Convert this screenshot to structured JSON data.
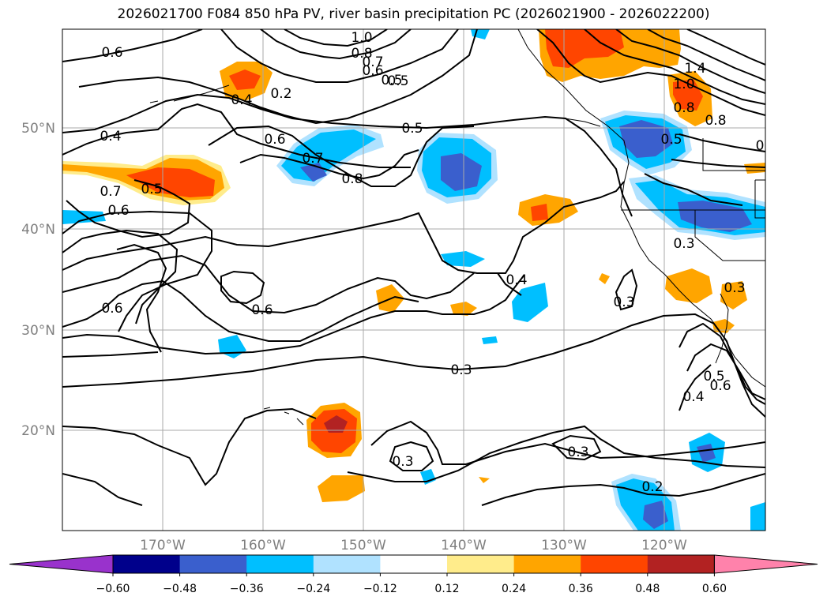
{
  "title": "2026021700 F084 850 hPa PV, river basin precipitation PC (2026021900 - 2026022200)",
  "axes": {
    "lat_labels": [
      "50°N",
      "40°N",
      "30°N",
      "20°N"
    ],
    "lon_labels": [
      "170°W",
      "160°W",
      "150°W",
      "140°W",
      "130°W",
      "120°W"
    ]
  },
  "colorbar": {
    "ticks": [
      "−0.60",
      "−0.48",
      "−0.36",
      "−0.24",
      "−0.12",
      "0.12",
      "0.24",
      "0.36",
      "0.48",
      "0.60"
    ],
    "colors": [
      "#9932cc",
      "#00008b",
      "#3a5fcd",
      "#00bfff",
      "#b0e2ff",
      "#ffffff",
      "#ffec8b",
      "#ffa500",
      "#ff4500",
      "#b22222",
      "#ff82ab"
    ]
  },
  "contour_labels": [
    "1.0",
    "0.8",
    "0.7",
    "0.6",
    "0.5",
    "0.6",
    "0.2",
    "0.4",
    "0.5",
    "0.4",
    "0.6",
    "0.7",
    "0.8",
    "0.5",
    "0.7",
    "0.6",
    "0.5",
    "1.4",
    "1.0",
    "0.8",
    "0.8",
    "0.5",
    "0.3",
    "0.4",
    "0.3",
    "0.6",
    "0.6",
    "0.3",
    "0.3",
    "0.3",
    "0.2",
    "0.5",
    "0.6",
    "0.4",
    "0.3",
    "0"
  ]
}
